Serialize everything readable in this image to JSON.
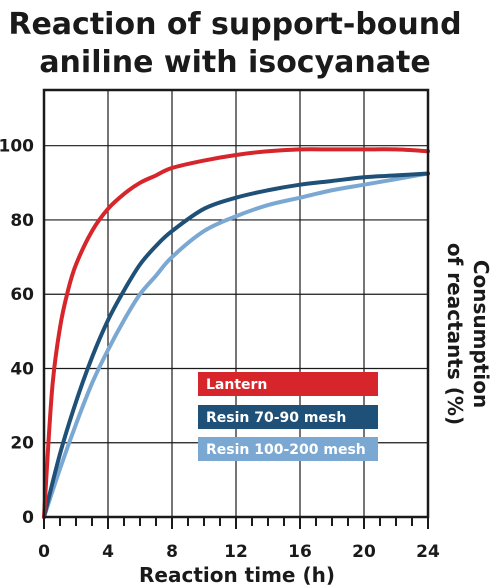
{
  "chart_data": {
    "type": "line",
    "title": [
      "Reaction of support-bound",
      "aniline with isocyanate"
    ],
    "xlabel": "Reaction time (h)",
    "ylabel": [
      "Consumption",
      "of reactants (%)"
    ],
    "xlim": [
      0,
      24
    ],
    "ylim": [
      0,
      115
    ],
    "xticks": [
      0,
      4,
      8,
      12,
      16,
      20,
      24
    ],
    "xtick_labels": [
      "0",
      "4",
      "8",
      "12",
      "16",
      "20",
      "24"
    ],
    "yticks": [
      0,
      20,
      40,
      60,
      80,
      100
    ],
    "ytick_labels": [
      "0",
      "20",
      "40",
      "60",
      "80",
      "100"
    ],
    "grid": true,
    "legend_position": "lower-right",
    "series": [
      {
        "name": "Lantern",
        "color": "#d6262b",
        "x": [
          0,
          0.5,
          1,
          1.5,
          2,
          3,
          4,
          5,
          6,
          7,
          8,
          10,
          12,
          14,
          16,
          18,
          20,
          22,
          24
        ],
        "y": [
          0,
          34,
          51,
          61,
          68,
          77,
          83,
          87,
          90,
          92,
          94,
          96,
          97.5,
          98.5,
          99,
          99,
          99,
          99,
          98.5
        ]
      },
      {
        "name": "Resin 70-90 mesh",
        "color": "#1f5078",
        "x": [
          0,
          1,
          2,
          3,
          4,
          5,
          6,
          7,
          8,
          10,
          12,
          14,
          16,
          18,
          20,
          22,
          24
        ],
        "y": [
          0,
          17,
          31,
          43,
          53,
          61,
          68,
          73,
          77,
          83,
          86,
          88,
          89.5,
          90.5,
          91.5,
          92,
          92.5
        ]
      },
      {
        "name": "Resin 100-200 mesh",
        "color": "#7aa8d2",
        "x": [
          0,
          1,
          2,
          3,
          4,
          5,
          6,
          7,
          8,
          10,
          12,
          14,
          16,
          18,
          20,
          22,
          24
        ],
        "y": [
          0,
          13,
          25,
          36,
          45,
          53,
          60,
          65,
          70,
          77,
          81,
          84,
          86,
          88,
          89.5,
          91,
          92.5
        ]
      }
    ]
  }
}
